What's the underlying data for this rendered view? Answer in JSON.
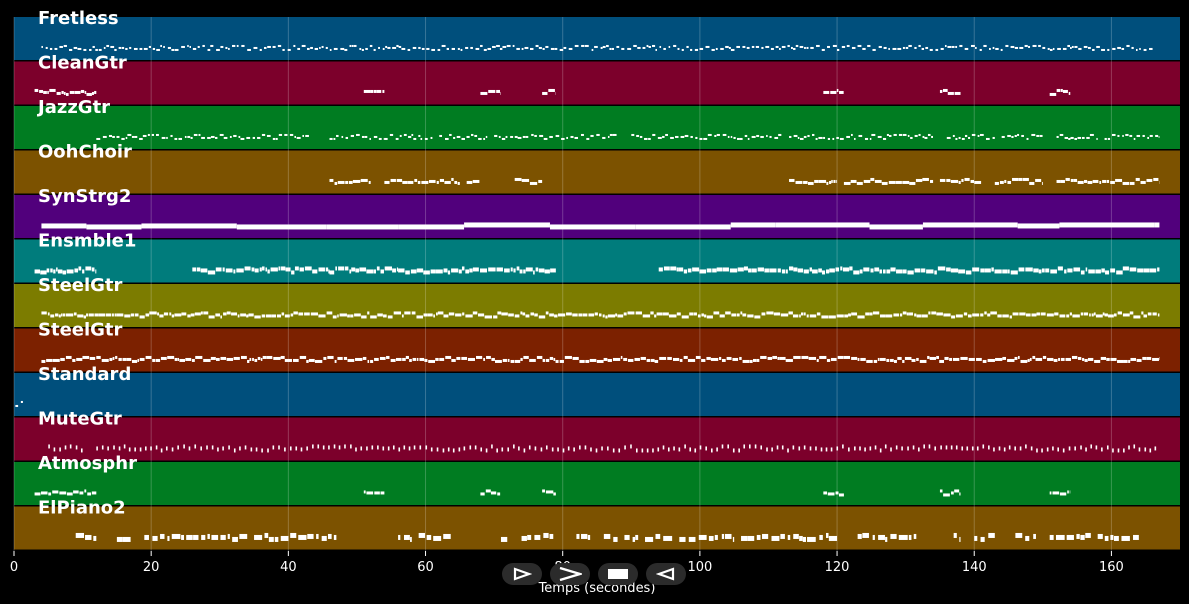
{
  "chart_data": {
    "type": "piano-roll",
    "xlabel": "Temps (secondes)",
    "xlim": [
      0,
      170
    ],
    "xticks": [
      0,
      20,
      40,
      60,
      80,
      100,
      120,
      140,
      160
    ],
    "tick_labels": [
      "0",
      "20",
      "40",
      "60",
      "80",
      "100",
      "120",
      "140",
      "160"
    ],
    "grid": true,
    "tracks": [
      {
        "name": "Fretless",
        "color": "#004f7c",
        "segments": [
          [
            4,
            166
          ]
        ],
        "style": "sparse",
        "thickness": 2
      },
      {
        "name": "CleanGtr",
        "color": "#7c002b",
        "segments": [
          [
            3,
            12
          ],
          [
            51,
            54
          ],
          [
            68,
            71
          ],
          [
            77,
            79
          ],
          [
            118,
            121
          ],
          [
            135,
            138
          ],
          [
            151,
            154
          ]
        ],
        "style": "dense",
        "thickness": 3
      },
      {
        "name": "JazzGtr",
        "color": "#007c21",
        "segments": [
          [
            12,
            43
          ],
          [
            46,
            54
          ],
          [
            54,
            61
          ],
          [
            62,
            69
          ],
          [
            70,
            79
          ],
          [
            79,
            88
          ],
          [
            90,
            112
          ],
          [
            113,
            118
          ],
          [
            118,
            125
          ],
          [
            125,
            134
          ],
          [
            136,
            143
          ],
          [
            144,
            150
          ],
          [
            152,
            158
          ],
          [
            159,
            167
          ]
        ],
        "style": "sparse",
        "thickness": 2
      },
      {
        "name": "OohChoir",
        "color": "#7c5200",
        "segments": [
          [
            46,
            52
          ],
          [
            54,
            65
          ],
          [
            66,
            68
          ],
          [
            73,
            77
          ],
          [
            113,
            120
          ],
          [
            121,
            134
          ],
          [
            135,
            141
          ],
          [
            143,
            150
          ],
          [
            152,
            167
          ]
        ],
        "style": "dense",
        "thickness": 3
      },
      {
        "name": "SynStrg2",
        "color": "#51007c",
        "segments": [
          [
            4,
            167
          ]
        ],
        "style": "solid",
        "thickness": 5
      },
      {
        "name": "Ensmble1",
        "color": "#007c7c",
        "segments": [
          [
            3,
            12
          ],
          [
            26,
            46
          ],
          [
            46,
            56
          ],
          [
            56,
            79
          ],
          [
            94,
            167
          ]
        ],
        "style": "dense",
        "thickness": 4
      },
      {
        "name": "SteelGtr",
        "color": "#7c7c00",
        "segments": [
          [
            4,
            167
          ]
        ],
        "style": "dense",
        "thickness": 3
      },
      {
        "name": "SteelGtr",
        "color": "#7c2100",
        "segments": [
          [
            4,
            167
          ]
        ],
        "style": "dense",
        "thickness": 3
      },
      {
        "name": "Standard",
        "color": "#004f7c",
        "segments": [
          [
            0.2,
            0.6
          ],
          [
            1.0,
            1.3
          ]
        ],
        "style": "dense",
        "thickness": 2
      },
      {
        "name": "MuteGtr",
        "color": "#7c002b",
        "segments": [
          [
            5,
            10
          ],
          [
            12,
            167
          ]
        ],
        "style": "ticks",
        "thickness": 4
      },
      {
        "name": "Atmosphr",
        "color": "#007c21",
        "segments": [
          [
            3,
            12
          ],
          [
            51,
            54
          ],
          [
            68,
            71
          ],
          [
            77,
            79
          ],
          [
            118,
            121
          ],
          [
            135,
            138
          ],
          [
            151,
            154
          ]
        ],
        "style": "dense",
        "thickness": 3
      },
      {
        "name": "ElPiano2",
        "color": "#7c5200",
        "segments": [
          [
            9,
            12
          ],
          [
            15,
            17
          ],
          [
            19,
            23
          ],
          [
            23,
            34
          ],
          [
            35,
            47
          ],
          [
            56,
            58
          ],
          [
            59,
            64
          ],
          [
            71,
            72
          ],
          [
            74,
            79
          ],
          [
            82,
            84
          ],
          [
            86,
            88
          ],
          [
            89,
            91
          ],
          [
            92,
            96
          ],
          [
            97,
            105
          ],
          [
            106,
            115
          ],
          [
            115,
            120
          ],
          [
            123,
            129
          ],
          [
            129,
            132
          ],
          [
            137,
            138
          ],
          [
            140,
            143
          ],
          [
            146,
            149
          ],
          [
            151,
            157
          ],
          [
            158,
            164
          ]
        ],
        "style": "blocks",
        "thickness": 5
      }
    ]
  },
  "controls": [
    {
      "name": "step-forward",
      "icon": "outline-play-icon"
    },
    {
      "name": "fast-forward",
      "icon": "chevron-right-icon"
    },
    {
      "name": "stop",
      "icon": "stop-icon"
    },
    {
      "name": "rewind",
      "icon": "outline-back-icon"
    }
  ]
}
